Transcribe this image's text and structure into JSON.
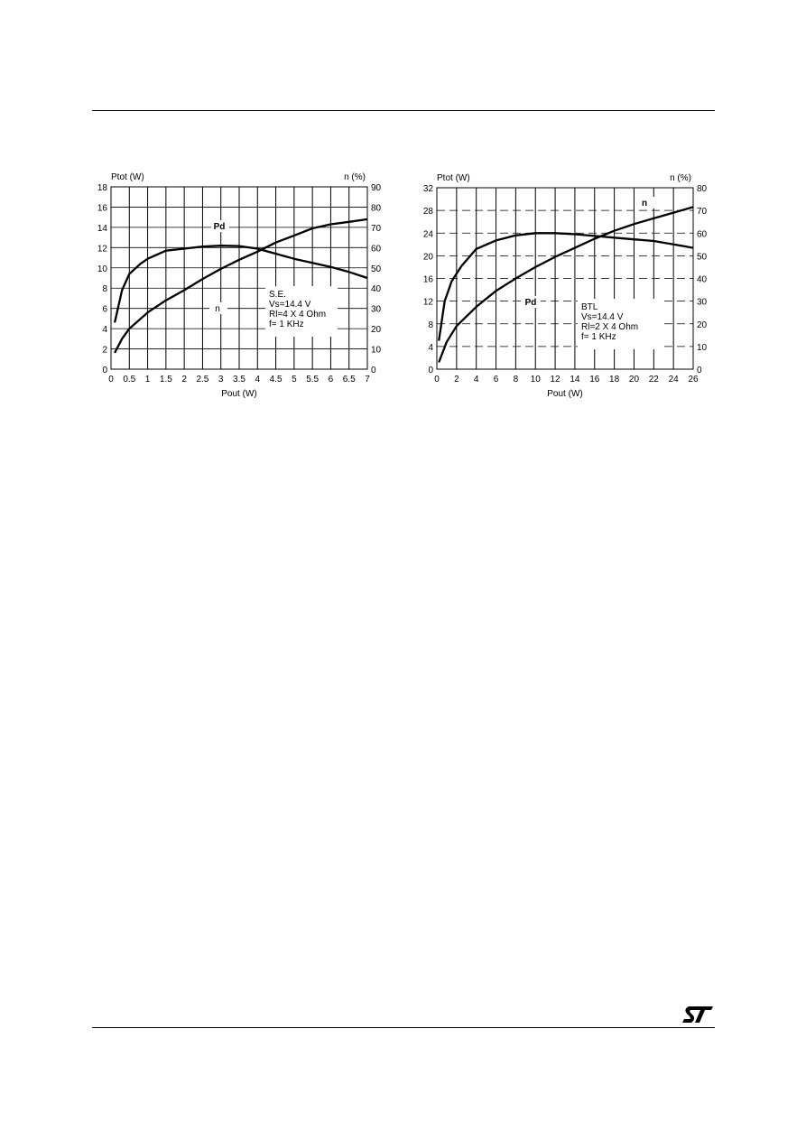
{
  "chart_data": [
    {
      "type": "line",
      "ylabel": "Ptot (W)",
      "y2label": "n (%)",
      "xlabel": "Pout (W)",
      "xlim": [
        0,
        7
      ],
      "ylim": [
        0,
        18
      ],
      "y2lim": [
        0,
        90
      ],
      "x_ticks": [
        "0",
        "0.5",
        "1",
        "1.5",
        "2",
        "2.5",
        "3",
        "3.5",
        "4",
        "4.5",
        "5",
        "5.5",
        "6",
        "6.5",
        "7"
      ],
      "y_ticks": [
        "0",
        "2",
        "4",
        "6",
        "8",
        "10",
        "12",
        "14",
        "16",
        "18"
      ],
      "y2_ticks": [
        "0",
        "10",
        "20",
        "30",
        "40",
        "50",
        "60",
        "70",
        "80",
        "90"
      ],
      "grid": true,
      "series": [
        {
          "name": "Pd",
          "axis": "left",
          "x": [
            0.1,
            0.3,
            0.5,
            0.8,
            1.0,
            1.5,
            2.0,
            2.5,
            3.0,
            3.5,
            4.0,
            4.5,
            5.0,
            5.5,
            6.0,
            6.5,
            7.0
          ],
          "y": [
            4.6,
            7.8,
            9.4,
            10.4,
            10.9,
            11.7,
            11.9,
            12.1,
            12.2,
            12.15,
            11.9,
            11.4,
            10.9,
            10.5,
            10.1,
            9.6,
            9.0
          ]
        },
        {
          "name": "n",
          "axis": "right",
          "x": [
            0.1,
            0.3,
            0.5,
            1.0,
            1.5,
            2.0,
            2.5,
            3.0,
            3.5,
            4.0,
            4.5,
            5.0,
            5.5,
            6.0,
            6.5,
            7.0
          ],
          "y": [
            8,
            15,
            20,
            28,
            34,
            39,
            44.5,
            49.5,
            54,
            58,
            62.5,
            66,
            69.5,
            71.5,
            72.7,
            74
          ]
        }
      ],
      "annotation_lines": [
        "S.E.",
        "Vs=14.4 V",
        "Rl=4 X 4 Ohm",
        "f= 1 KHz"
      ]
    },
    {
      "type": "line",
      "ylabel": "Ptot (W)",
      "y2label": "n (%)",
      "xlabel": "Pout (W)",
      "xlim": [
        0,
        26
      ],
      "ylim": [
        0,
        32
      ],
      "y2lim": [
        0,
        80
      ],
      "x_ticks": [
        "0",
        "2",
        "4",
        "6",
        "8",
        "10",
        "12",
        "14",
        "16",
        "18",
        "20",
        "22",
        "24",
        "26"
      ],
      "y_ticks": [
        "0",
        "4",
        "8",
        "12",
        "16",
        "20",
        "24",
        "28",
        "32"
      ],
      "y2_ticks": [
        "0",
        "10",
        "20",
        "30",
        "40",
        "50",
        "60",
        "70",
        "80"
      ],
      "grid": true,
      "series": [
        {
          "name": "Pd",
          "axis": "left",
          "x": [
            0.2,
            0.8,
            1.5,
            2.5,
            4.0,
            6.0,
            8.0,
            10.0,
            12.0,
            14.0,
            16.0,
            18.0,
            20.0,
            22.0,
            24.0,
            26.0
          ],
          "y": [
            5.0,
            12.0,
            15.5,
            18.2,
            21.2,
            22.7,
            23.6,
            24.0,
            24.0,
            23.8,
            23.5,
            23.2,
            22.9,
            22.6,
            22.0,
            21.4
          ]
        },
        {
          "name": "n",
          "axis": "right",
          "x": [
            0.2,
            1.0,
            2.0,
            4.0,
            6.0,
            8.0,
            10.0,
            12.0,
            14.0,
            16.0,
            18.0,
            20.0,
            22.0,
            24.0,
            26.0
          ],
          "y": [
            3,
            12,
            19,
            27.5,
            34.5,
            40,
            45,
            49.5,
            53.5,
            57.5,
            61,
            64,
            66.5,
            69,
            71.5
          ]
        }
      ],
      "annotation_lines": [
        "BTL",
        "Vs=14.4 V",
        "Rl=2 X 4 Ohm",
        "f= 1 KHz"
      ]
    }
  ],
  "logo": {
    "text": "ST",
    "color": "#000000"
  }
}
